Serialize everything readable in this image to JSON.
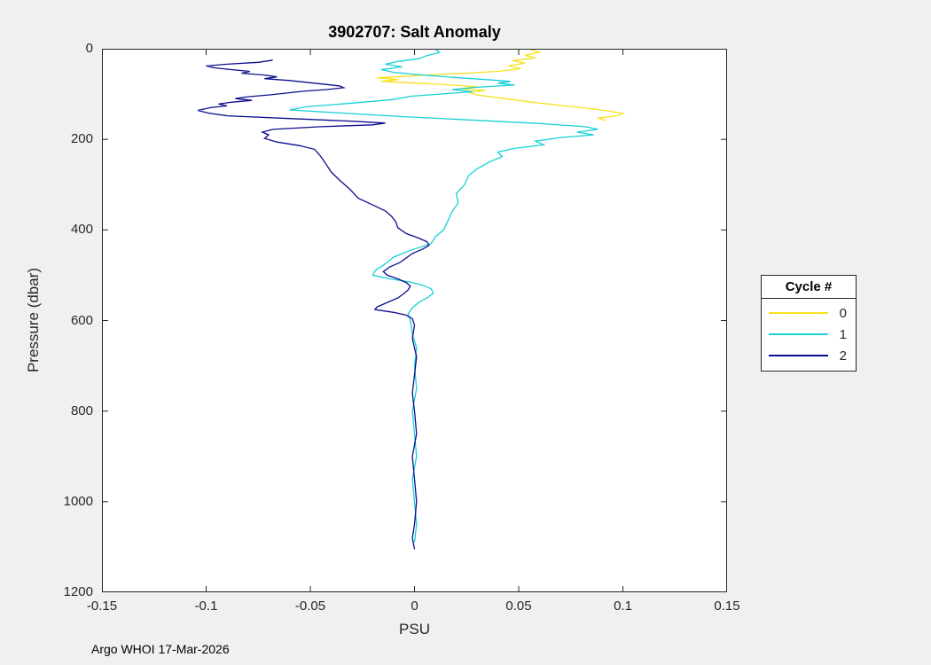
{
  "figure": {
    "background": "#f0f0f0",
    "axes_color": "#262626",
    "footer": "Argo WHOI 17-Mar-2026"
  },
  "chart_data": {
    "type": "line",
    "title": "3902707: Salt Anomaly",
    "xlabel": "PSU",
    "ylabel": "Pressure (dbar)",
    "xlim": [
      -0.15,
      0.15
    ],
    "ylim": [
      0,
      1200
    ],
    "y_inverted": true,
    "grid": false,
    "xticks": [
      -0.15,
      -0.1,
      -0.05,
      0,
      0.05,
      0.1,
      0.15
    ],
    "xtick_labels": [
      "-0.15",
      "-0.1",
      "-0.05",
      "0",
      "0.05",
      "0.1",
      "0.15"
    ],
    "yticks": [
      0,
      200,
      400,
      600,
      800,
      1000,
      1200
    ],
    "ytick_labels": [
      "0",
      "200",
      "400",
      "600",
      "800",
      "1000",
      "1200"
    ],
    "legend": {
      "title": "Cycle #",
      "position": "right-outside"
    },
    "series": [
      {
        "name": "0",
        "color": "#f7e11e",
        "pressure": [
          0,
          8,
          14,
          20,
          26,
          32,
          38,
          44,
          50,
          55,
          60,
          64,
          68,
          72,
          76,
          80,
          84,
          88,
          92,
          96,
          102,
          108,
          114,
          120,
          126,
          132,
          138,
          143,
          148,
          153,
          158
        ],
        "psu": [
          0.055,
          0.06,
          0.053,
          0.058,
          0.047,
          0.053,
          0.045,
          0.051,
          0.04,
          0.02,
          -0.002,
          -0.018,
          -0.008,
          -0.016,
          0.002,
          0.018,
          0.03,
          0.022,
          0.034,
          0.026,
          0.03,
          0.04,
          0.05,
          0.06,
          0.072,
          0.084,
          0.094,
          0.1,
          0.097,
          0.088,
          0.092
        ]
      },
      {
        "name": "1",
        "color": "#17d0d9",
        "pressure": [
          0,
          8,
          15,
          22,
          28,
          34,
          40,
          46,
          52,
          58,
          63,
          68,
          72,
          76,
          80,
          85,
          90,
          95,
          100,
          105,
          112,
          120,
          128,
          135,
          142,
          150,
          158,
          165,
          172,
          178,
          184,
          190,
          196,
          204,
          212,
          220,
          228,
          238,
          250,
          265,
          280,
          300,
          320,
          340,
          360,
          380,
          400,
          415,
          430,
          445,
          460,
          475,
          490,
          500,
          508,
          515,
          522,
          530,
          540,
          550,
          560,
          572,
          585,
          600,
          630,
          660,
          700,
          750,
          800,
          850,
          900,
          950,
          1000,
          1050,
          1090
        ],
        "psu": [
          0.01,
          0.012,
          0.006,
          0.002,
          -0.008,
          -0.014,
          -0.006,
          -0.016,
          -0.01,
          0.004,
          0.018,
          0.034,
          0.046,
          0.04,
          0.048,
          0.03,
          0.018,
          0.028,
          0.012,
          -0.002,
          -0.01,
          -0.03,
          -0.052,
          -0.06,
          -0.035,
          -0.005,
          0.03,
          0.06,
          0.082,
          0.088,
          0.078,
          0.086,
          0.07,
          0.058,
          0.062,
          0.048,
          0.04,
          0.042,
          0.036,
          0.03,
          0.026,
          0.024,
          0.02,
          0.021,
          0.018,
          0.016,
          0.014,
          0.01,
          0.008,
          -0.002,
          -0.01,
          -0.014,
          -0.019,
          -0.02,
          -0.012,
          -0.002,
          0.004,
          0.008,
          0.009,
          0.006,
          0.002,
          -0.001,
          -0.003,
          -0.002,
          -0.001,
          0.001,
          0.0,
          0.001,
          -0.001,
          0.0,
          0.001,
          -0.001,
          0.0,
          0.001,
          0.0
        ]
      },
      {
        "name": "2",
        "color": "#0d0d8f",
        "pressure": [
          25,
          30,
          34,
          38,
          42,
          46,
          50,
          54,
          58,
          62,
          66,
          70,
          74,
          78,
          82,
          86,
          90,
          94,
          98,
          102,
          106,
          110,
          114,
          118,
          122,
          126,
          130,
          136,
          142,
          148,
          154,
          160,
          164,
          168,
          172,
          178,
          184,
          190,
          198,
          206,
          214,
          222,
          232,
          244,
          258,
          272,
          290,
          310,
          330,
          345,
          358,
          370,
          382,
          395,
          408,
          418,
          426,
          434,
          442,
          452,
          462,
          472,
          482,
          492,
          500,
          508,
          516,
          524,
          532,
          540,
          550,
          560,
          570,
          576,
          582,
          588,
          596,
          610,
          640,
          680,
          720,
          760,
          800,
          850,
          900,
          950,
          1000,
          1050,
          1080,
          1105
        ],
        "psu": [
          -0.068,
          -0.075,
          -0.09,
          -0.1,
          -0.096,
          -0.088,
          -0.079,
          -0.083,
          -0.072,
          -0.066,
          -0.072,
          -0.06,
          -0.052,
          -0.044,
          -0.036,
          -0.034,
          -0.042,
          -0.054,
          -0.062,
          -0.07,
          -0.08,
          -0.086,
          -0.078,
          -0.088,
          -0.094,
          -0.09,
          -0.098,
          -0.104,
          -0.099,
          -0.09,
          -0.06,
          -0.03,
          -0.014,
          -0.02,
          -0.045,
          -0.068,
          -0.073,
          -0.07,
          -0.072,
          -0.066,
          -0.055,
          -0.048,
          -0.046,
          -0.044,
          -0.042,
          -0.04,
          -0.036,
          -0.031,
          -0.027,
          -0.02,
          -0.014,
          -0.011,
          -0.009,
          -0.008,
          -0.004,
          0.002,
          0.006,
          0.007,
          0.004,
          -0.001,
          -0.004,
          -0.007,
          -0.012,
          -0.015,
          -0.013,
          -0.008,
          -0.004,
          -0.002,
          -0.003,
          -0.005,
          -0.008,
          -0.013,
          -0.018,
          -0.019,
          -0.01,
          -0.004,
          -0.001,
          0.0,
          -0.001,
          0.001,
          0.0,
          -0.001,
          0.0,
          0.001,
          -0.001,
          0.0,
          0.001,
          0.0,
          -0.001,
          0.0
        ]
      }
    ]
  }
}
